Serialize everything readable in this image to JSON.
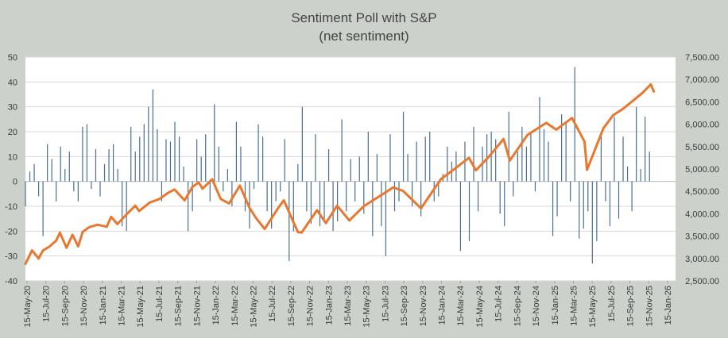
{
  "chart_data": {
    "type": "bar+line",
    "title": "Sentiment Poll with S&P",
    "subtitle": "(net sentiment)",
    "xlabel": "",
    "ylabel": "",
    "x_range": [
      "2020-05-15",
      "2026-01-15"
    ],
    "x_tick_labels": [
      "15-May-20",
      "15-Jul-20",
      "15-Sep-20",
      "15-Nov-20",
      "15-Jan-21",
      "15-Mar-21",
      "15-May-21",
      "15-Jul-21",
      "15-Sep-21",
      "15-Nov-21",
      "15-Jan-22",
      "15-Mar-22",
      "15-May-22",
      "15-Jul-22",
      "15-Sep-22",
      "15-Nov-22",
      "15-Jan-23",
      "15-Mar-23",
      "15-May-23",
      "15-Jul-23",
      "15-Sep-23",
      "15-Nov-23",
      "15-Jan-24",
      "15-Mar-24",
      "15-May-24",
      "15-Jul-24",
      "15-Sep-24",
      "15-Nov-24",
      "15-Jan-25",
      "15-Mar-25",
      "15-May-25",
      "15-Jul-25",
      "15-Sep-25",
      "15-Nov-25",
      "15-Jan-26"
    ],
    "y_left": {
      "min": -40,
      "max": 50,
      "step": 10,
      "tick_labels": [
        "-40",
        "-30",
        "-20",
        "-10",
        "0",
        "10",
        "20",
        "30",
        "40",
        "50"
      ]
    },
    "y_right": {
      "min": 2500,
      "max": 7500,
      "step": 500,
      "tick_labels": [
        "2,500.00",
        "3,000.00",
        "3,500.00",
        "4,000.00",
        "4,500.00",
        "5,000.00",
        "5,500.00",
        "6,000.00",
        "6,500.00",
        "7,000.00",
        "7,500.00"
      ]
    },
    "grid": true,
    "colors": {
      "bars": "#4a6f91",
      "line": "#e8782f",
      "grid": "#d9d9d9",
      "plot_bg": "#ffffff"
    },
    "series": [
      {
        "name": "Net sentiment",
        "kind": "bar",
        "axis": "left",
        "points": [
          [
            "2020-05-15",
            -10
          ],
          [
            "2020-05-29",
            4
          ],
          [
            "2020-06-12",
            7
          ],
          [
            "2020-06-26",
            -6
          ],
          [
            "2020-07-10",
            -22
          ],
          [
            "2020-07-24",
            15
          ],
          [
            "2020-08-07",
            9
          ],
          [
            "2020-08-21",
            -8
          ],
          [
            "2020-09-04",
            14
          ],
          [
            "2020-09-18",
            5
          ],
          [
            "2020-10-02",
            12
          ],
          [
            "2020-10-16",
            -4
          ],
          [
            "2020-10-30",
            -8
          ],
          [
            "2020-11-13",
            22
          ],
          [
            "2020-11-27",
            23
          ],
          [
            "2020-12-11",
            -3
          ],
          [
            "2020-12-25",
            13
          ],
          [
            "2021-01-08",
            -6
          ],
          [
            "2021-01-22",
            7
          ],
          [
            "2021-02-05",
            13
          ],
          [
            "2021-02-19",
            15
          ],
          [
            "2021-03-05",
            5
          ],
          [
            "2021-03-19",
            -18
          ],
          [
            "2021-04-02",
            -20
          ],
          [
            "2021-04-16",
            22
          ],
          [
            "2021-04-30",
            12
          ],
          [
            "2021-05-14",
            18
          ],
          [
            "2021-05-28",
            23
          ],
          [
            "2021-06-11",
            30
          ],
          [
            "2021-06-25",
            37
          ],
          [
            "2021-07-09",
            21
          ],
          [
            "2021-07-23",
            -8
          ],
          [
            "2021-08-06",
            17
          ],
          [
            "2021-08-20",
            16
          ],
          [
            "2021-09-03",
            24
          ],
          [
            "2021-09-17",
            18
          ],
          [
            "2021-10-01",
            6
          ],
          [
            "2021-10-15",
            -20
          ],
          [
            "2021-10-29",
            -12
          ],
          [
            "2021-11-12",
            17
          ],
          [
            "2021-11-26",
            10
          ],
          [
            "2021-12-10",
            19
          ],
          [
            "2021-12-24",
            -8
          ],
          [
            "2021-01-01",
            0
          ],
          [
            "2022-01-07",
            31
          ],
          [
            "2022-01-21",
            14
          ],
          [
            "2022-02-04",
            -4
          ],
          [
            "2022-02-18",
            5
          ],
          [
            "2022-03-04",
            -10
          ],
          [
            "2022-03-18",
            24
          ],
          [
            "2022-04-01",
            14
          ],
          [
            "2022-04-15",
            -12
          ],
          [
            "2022-04-29",
            -19
          ],
          [
            "2022-05-13",
            -3
          ],
          [
            "2022-05-27",
            23
          ],
          [
            "2022-06-10",
            18
          ],
          [
            "2022-06-24",
            -12
          ],
          [
            "2022-07-08",
            -19
          ],
          [
            "2022-07-22",
            -8
          ],
          [
            "2022-08-05",
            -4
          ],
          [
            "2022-08-19",
            17
          ],
          [
            "2022-09-02",
            -32
          ],
          [
            "2022-09-16",
            -20
          ],
          [
            "2022-09-30",
            7
          ],
          [
            "2022-10-14",
            30
          ],
          [
            "2022-10-28",
            -12
          ],
          [
            "2022-11-11",
            -17
          ],
          [
            "2022-11-25",
            19
          ],
          [
            "2022-12-09",
            -18
          ],
          [
            "2022-12-23",
            -15
          ],
          [
            "2023-01-06",
            13
          ],
          [
            "2023-01-20",
            -20
          ],
          [
            "2023-02-03",
            -16
          ],
          [
            "2023-02-17",
            25
          ],
          [
            "2023-03-03",
            -12
          ],
          [
            "2023-03-17",
            9
          ],
          [
            "2023-03-31",
            -8
          ],
          [
            "2023-04-14",
            10
          ],
          [
            "2023-04-28",
            -13
          ],
          [
            "2023-05-12",
            20
          ],
          [
            "2023-05-26",
            -22
          ],
          [
            "2023-06-09",
            11
          ],
          [
            "2023-06-23",
            -18
          ],
          [
            "2023-07-07",
            -30
          ],
          [
            "2023-07-21",
            19
          ],
          [
            "2023-08-04",
            -12
          ],
          [
            "2023-08-18",
            -8
          ],
          [
            "2023-09-01",
            28
          ],
          [
            "2023-09-15",
            11
          ],
          [
            "2023-09-29",
            -10
          ],
          [
            "2023-10-13",
            16
          ],
          [
            "2023-10-27",
            -14
          ],
          [
            "2023-11-10",
            18
          ],
          [
            "2023-11-24",
            20
          ],
          [
            "2023-12-08",
            -8
          ],
          [
            "2023-12-22",
            -6
          ],
          [
            "2024-01-05",
            3
          ],
          [
            "2024-01-19",
            14
          ],
          [
            "2024-02-02",
            8
          ],
          [
            "2024-02-16",
            12
          ],
          [
            "2024-03-01",
            -28
          ],
          [
            "2024-03-15",
            16
          ],
          [
            "2024-03-29",
            -24
          ],
          [
            "2024-04-12",
            22
          ],
          [
            "2024-04-26",
            -12
          ],
          [
            "2024-05-10",
            14
          ],
          [
            "2024-05-24",
            19
          ],
          [
            "2024-06-07",
            20
          ],
          [
            "2024-06-21",
            17
          ],
          [
            "2024-07-05",
            -13
          ],
          [
            "2024-07-19",
            -18
          ],
          [
            "2024-08-02",
            28
          ],
          [
            "2024-08-16",
            -6
          ],
          [
            "2024-08-30",
            12
          ],
          [
            "2024-09-13",
            22
          ],
          [
            "2024-09-27",
            14
          ],
          [
            "2024-10-11",
            20
          ],
          [
            "2024-10-25",
            -4
          ],
          [
            "2024-11-08",
            34
          ],
          [
            "2024-11-22",
            21
          ],
          [
            "2024-12-06",
            16
          ],
          [
            "2024-12-20",
            -22
          ],
          [
            "2025-01-03",
            -14
          ],
          [
            "2025-01-17",
            27
          ],
          [
            "2025-01-31",
            24
          ],
          [
            "2025-02-14",
            -8
          ],
          [
            "2025-02-28",
            46
          ],
          [
            "2025-03-14",
            -23
          ],
          [
            "2025-03-28",
            -19
          ],
          [
            "2025-04-11",
            -12
          ],
          [
            "2025-04-25",
            -33
          ],
          [
            "2025-05-09",
            -24
          ],
          [
            "2025-05-23",
            18
          ],
          [
            "2025-06-06",
            -8
          ],
          [
            "2025-06-20",
            -18
          ],
          [
            "2025-07-04",
            26
          ],
          [
            "2025-07-18",
            -15
          ],
          [
            "2025-08-01",
            18
          ],
          [
            "2025-08-15",
            6
          ],
          [
            "2025-08-29",
            -12
          ],
          [
            "2025-09-12",
            30
          ],
          [
            "2025-09-26",
            5
          ],
          [
            "2025-10-10",
            26
          ],
          [
            "2025-10-24",
            12
          ]
        ]
      },
      {
        "name": "S&P 500",
        "kind": "line",
        "axis": "right",
        "points": [
          [
            "2020-05-15",
            2880
          ],
          [
            "2020-06-05",
            3180
          ],
          [
            "2020-06-26",
            3000
          ],
          [
            "2020-07-10",
            3180
          ],
          [
            "2020-07-31",
            3270
          ],
          [
            "2020-08-21",
            3400
          ],
          [
            "2020-09-02",
            3580
          ],
          [
            "2020-09-23",
            3240
          ],
          [
            "2020-10-12",
            3530
          ],
          [
            "2020-10-30",
            3270
          ],
          [
            "2020-11-13",
            3590
          ],
          [
            "2020-12-04",
            3700
          ],
          [
            "2020-12-31",
            3756
          ],
          [
            "2021-01-29",
            3710
          ],
          [
            "2021-02-12",
            3930
          ],
          [
            "2021-03-04",
            3770
          ],
          [
            "2021-03-31",
            3970
          ],
          [
            "2021-04-30",
            4180
          ],
          [
            "2021-05-12",
            4060
          ],
          [
            "2021-06-15",
            4250
          ],
          [
            "2021-07-16",
            4330
          ],
          [
            "2021-08-13",
            4470
          ],
          [
            "2021-09-02",
            4540
          ],
          [
            "2021-10-04",
            4300
          ],
          [
            "2021-10-29",
            4600
          ],
          [
            "2021-11-18",
            4700
          ],
          [
            "2021-11-30",
            4560
          ],
          [
            "2021-12-31",
            4770
          ],
          [
            "2022-01-27",
            4330
          ],
          [
            "2022-02-23",
            4230
          ],
          [
            "2022-03-29",
            4630
          ],
          [
            "2022-04-29",
            4130
          ],
          [
            "2022-05-20",
            3900
          ],
          [
            "2022-06-16",
            3660
          ],
          [
            "2022-07-29",
            4130
          ],
          [
            "2022-08-16",
            4300
          ],
          [
            "2022-09-30",
            3590
          ],
          [
            "2022-10-12",
            3580
          ],
          [
            "2022-11-30",
            4080
          ],
          [
            "2022-12-28",
            3790
          ],
          [
            "2023-02-02",
            4180
          ],
          [
            "2023-03-13",
            3850
          ],
          [
            "2023-04-28",
            4170
          ],
          [
            "2023-06-30",
            4450
          ],
          [
            "2023-07-31",
            4590
          ],
          [
            "2023-08-31",
            4510
          ],
          [
            "2023-10-27",
            4120
          ],
          [
            "2023-12-29",
            4770
          ],
          [
            "2024-02-29",
            5100
          ],
          [
            "2024-03-28",
            5250
          ],
          [
            "2024-04-19",
            4970
          ],
          [
            "2024-05-31",
            5280
          ],
          [
            "2024-07-16",
            5670
          ],
          [
            "2024-08-05",
            5190
          ],
          [
            "2024-09-30",
            5760
          ],
          [
            "2024-11-29",
            6030
          ],
          [
            "2024-12-31",
            5880
          ],
          [
            "2025-02-19",
            6140
          ],
          [
            "2025-03-31",
            5610
          ],
          [
            "2025-04-08",
            4980
          ],
          [
            "2025-05-30",
            5910
          ],
          [
            "2025-06-30",
            6200
          ],
          [
            "2025-07-31",
            6340
          ],
          [
            "2025-09-30",
            6690
          ],
          [
            "2025-10-28",
            6890
          ],
          [
            "2025-11-07",
            6730
          ]
        ]
      }
    ]
  }
}
